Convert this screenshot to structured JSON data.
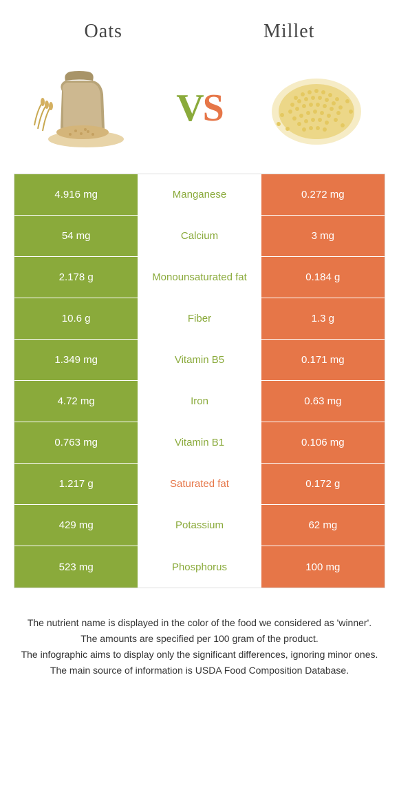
{
  "header": {
    "left_title": "Oats",
    "right_title": "Millet",
    "vs_v": "V",
    "vs_s": "S"
  },
  "colors": {
    "left": "#8aaa3b",
    "right": "#e67648",
    "mid_bg": "#ffffff"
  },
  "table": {
    "rows": [
      {
        "left": "4.916 mg",
        "label": "Manganese",
        "right": "0.272 mg",
        "winner": "left"
      },
      {
        "left": "54 mg",
        "label": "Calcium",
        "right": "3 mg",
        "winner": "left"
      },
      {
        "left": "2.178 g",
        "label": "Monounsaturated fat",
        "right": "0.184 g",
        "winner": "left"
      },
      {
        "left": "10.6 g",
        "label": "Fiber",
        "right": "1.3 g",
        "winner": "left"
      },
      {
        "left": "1.349 mg",
        "label": "Vitamin B5",
        "right": "0.171 mg",
        "winner": "left"
      },
      {
        "left": "4.72 mg",
        "label": "Iron",
        "right": "0.63 mg",
        "winner": "left"
      },
      {
        "left": "0.763 mg",
        "label": "Vitamin B1",
        "right": "0.106 mg",
        "winner": "left"
      },
      {
        "left": "1.217 g",
        "label": "Saturated fat",
        "right": "0.172 g",
        "winner": "right"
      },
      {
        "left": "429 mg",
        "label": "Potassium",
        "right": "62 mg",
        "winner": "left"
      },
      {
        "left": "523 mg",
        "label": "Phosphorus",
        "right": "100 mg",
        "winner": "left"
      }
    ]
  },
  "footnotes": [
    "The nutrient name is displayed in the color of the food we considered as 'winner'.",
    "The amounts are specified per 100 gram of the product.",
    "The infographic aims to display only the significant differences, ignoring minor ones.",
    "The main source of information is USDA Food Composition Database."
  ]
}
